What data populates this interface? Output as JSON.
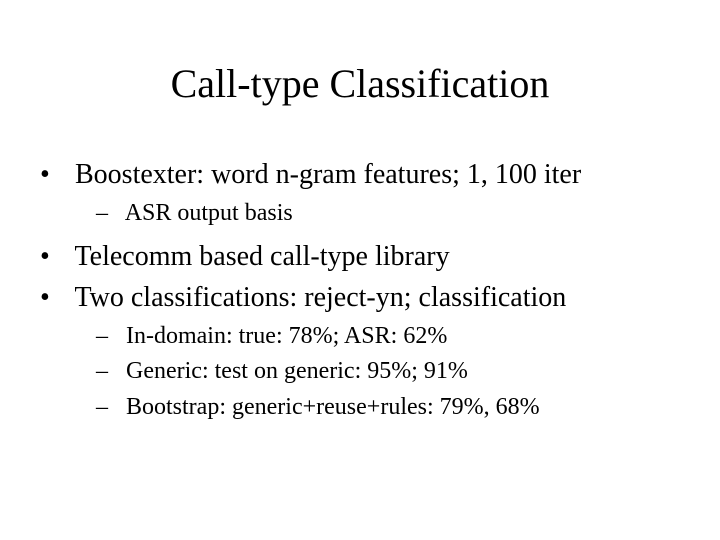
{
  "title": "Call-type Classification",
  "title_fontsize": 40,
  "body_fontsize_l1": 28,
  "body_fontsize_l2": 24,
  "background_color": "#ffffff",
  "text_color": "#000000",
  "font_family": "Times New Roman",
  "bullets": {
    "b1": "Boostexter: word n-gram features; 1, 100 iter",
    "b1_sub": {
      "s1": "ASR output basis"
    },
    "b2": "Telecomm based call-type library",
    "b3": "Two classifications: reject-yn; classification",
    "b3_sub": {
      "s1": "In-domain: true: 78%; ASR: 62%",
      "s2": "Generic: test on generic: 95%; 91%",
      "s3": "Bootstrap: generic+reuse+rules: 79%, 68%"
    }
  }
}
